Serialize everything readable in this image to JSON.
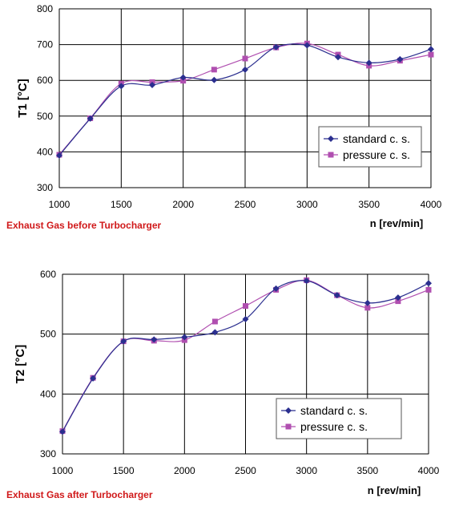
{
  "colors": {
    "standard": "#2b2f8f",
    "pressure": "#b04fb0",
    "caption": "#d0191a",
    "grid": "#000000"
  },
  "chart_data": [
    {
      "type": "line",
      "caption": "Exhaust Gas before Turbocharger",
      "ylabel": "T1 [°C]",
      "xlabel": "n  [rev/min]",
      "xlim": [
        1000,
        4000
      ],
      "ylim": [
        300,
        800
      ],
      "xticks": [
        1000,
        1500,
        2000,
        2500,
        3000,
        3500,
        4000
      ],
      "yticks": [
        300,
        400,
        500,
        600,
        700,
        800
      ],
      "legend": "bottom-right",
      "grid": true,
      "series": [
        {
          "name": "standard c. s.",
          "marker": "diamond",
          "x": [
            1000,
            1250,
            1500,
            1750,
            2000,
            2250,
            2500,
            2750,
            3000,
            3250,
            3500,
            3750,
            4000
          ],
          "y": [
            390,
            493,
            584,
            587,
            608,
            601,
            630,
            693,
            698,
            665,
            649,
            659,
            687
          ]
        },
        {
          "name": "pressure c. s.",
          "marker": "square",
          "x": [
            1000,
            1250,
            1500,
            1750,
            2000,
            2250,
            2500,
            2750,
            3000,
            3250,
            3500,
            3750,
            4000
          ],
          "y": [
            392,
            494,
            591,
            595,
            599,
            630,
            661,
            692,
            703,
            672,
            641,
            655,
            672
          ]
        }
      ]
    },
    {
      "type": "line",
      "caption": "Exhaust Gas after Turbocharger",
      "ylabel": "T2 [°C]",
      "xlabel": "n  [rev/min]",
      "xlim": [
        1000,
        4000
      ],
      "ylim": [
        300,
        600
      ],
      "xticks": [
        1000,
        1500,
        2000,
        2500,
        3000,
        3500,
        4000
      ],
      "yticks": [
        300,
        400,
        500,
        600
      ],
      "legend": "bottom-right",
      "grid": true,
      "series": [
        {
          "name": "standard c. s.",
          "marker": "diamond",
          "x": [
            1000,
            1250,
            1500,
            1750,
            2000,
            2250,
            2500,
            2750,
            3000,
            3250,
            3500,
            3750,
            4000
          ],
          "y": [
            337,
            426,
            488,
            491,
            495,
            503,
            525,
            576,
            589,
            565,
            552,
            561,
            585
          ]
        },
        {
          "name": "pressure c. s.",
          "marker": "square",
          "x": [
            1000,
            1250,
            1500,
            1750,
            2000,
            2250,
            2500,
            2750,
            3000,
            3250,
            3500,
            3750,
            4000
          ],
          "y": [
            338,
            427,
            488,
            489,
            490,
            521,
            547,
            574,
            590,
            565,
            544,
            555,
            574
          ]
        }
      ]
    }
  ]
}
